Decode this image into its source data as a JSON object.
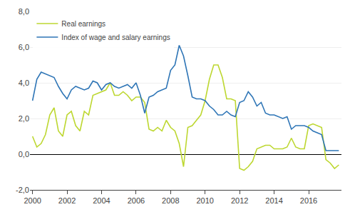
{
  "chart_data": {
    "type": "line",
    "x": [
      2000.0,
      2000.25,
      2000.5,
      2000.75,
      2001.0,
      2001.25,
      2001.5,
      2001.75,
      2002.0,
      2002.25,
      2002.5,
      2002.75,
      2003.0,
      2003.25,
      2003.5,
      2003.75,
      2004.0,
      2004.25,
      2004.5,
      2004.75,
      2005.0,
      2005.25,
      2005.5,
      2005.75,
      2006.0,
      2006.25,
      2006.5,
      2006.75,
      2007.0,
      2007.25,
      2007.5,
      2007.75,
      2008.0,
      2008.25,
      2008.5,
      2008.75,
      2009.0,
      2009.25,
      2009.5,
      2009.75,
      2010.0,
      2010.25,
      2010.5,
      2010.75,
      2011.0,
      2011.25,
      2011.5,
      2011.75,
      2012.0,
      2012.25,
      2012.5,
      2012.75,
      2013.0,
      2013.25,
      2013.5,
      2013.75,
      2014.0,
      2014.25,
      2014.5,
      2014.75,
      2015.0,
      2015.25,
      2015.5,
      2015.75,
      2016.0,
      2016.25,
      2016.5,
      2016.75,
      2017.0,
      2017.25,
      2017.5,
      2017.75
    ],
    "series": [
      {
        "name": "Real earnings",
        "color": "#bdd730",
        "values": [
          1.0,
          0.4,
          0.6,
          1.1,
          2.2,
          2.6,
          1.3,
          1.0,
          2.2,
          2.4,
          1.6,
          1.3,
          2.4,
          2.2,
          3.3,
          3.4,
          3.5,
          3.6,
          4.0,
          3.3,
          3.3,
          3.5,
          3.3,
          3.0,
          3.2,
          3.2,
          2.9,
          1.4,
          1.3,
          1.5,
          1.3,
          1.9,
          1.5,
          1.3,
          0.6,
          -0.7,
          1.5,
          1.6,
          1.9,
          2.2,
          3.0,
          4.2,
          5.0,
          5.0,
          4.3,
          3.1,
          3.1,
          3.0,
          -0.8,
          -0.9,
          -0.7,
          -0.4,
          0.3,
          0.4,
          0.5,
          0.5,
          0.3,
          0.3,
          0.3,
          0.4,
          0.9,
          0.4,
          0.3,
          0.3,
          1.6,
          1.7,
          1.6,
          1.5,
          -0.3,
          -0.5,
          -0.8,
          -0.6
        ]
      },
      {
        "name": "Index of wage and salary earnings",
        "color": "#2e75b6",
        "values": [
          3.0,
          4.2,
          4.6,
          4.5,
          4.4,
          4.3,
          3.8,
          3.4,
          3.1,
          3.6,
          3.8,
          3.7,
          3.6,
          3.7,
          4.1,
          4.0,
          3.6,
          3.9,
          4.0,
          3.8,
          3.7,
          3.8,
          3.9,
          3.7,
          4.0,
          3.3,
          2.3,
          3.2,
          3.3,
          3.5,
          3.6,
          3.7,
          4.7,
          5.0,
          6.1,
          5.5,
          4.4,
          3.2,
          3.1,
          3.1,
          3.0,
          2.7,
          2.5,
          2.2,
          2.2,
          2.4,
          2.2,
          2.1,
          2.9,
          3.0,
          3.5,
          3.2,
          2.7,
          2.9,
          2.3,
          2.2,
          2.2,
          2.1,
          2.0,
          2.1,
          1.4,
          1.6,
          1.6,
          1.6,
          1.5,
          1.3,
          1.2,
          1.1,
          0.2,
          0.2,
          0.2,
          0.2
        ]
      }
    ],
    "xlim": [
      1999.85,
      2017.9
    ],
    "xticks": [
      2000,
      2002,
      2004,
      2006,
      2008,
      2010,
      2012,
      2014,
      2016
    ],
    "ylim": [
      -2.0,
      8.0
    ],
    "yticks": [
      {
        "value": -2.0,
        "label": "-2,0"
      },
      {
        "value": 0.0,
        "label": "0,0"
      },
      {
        "value": 2.0,
        "label": "2,0"
      },
      {
        "value": 4.0,
        "label": "4,0"
      },
      {
        "value": 6.0,
        "label": "6,0"
      },
      {
        "value": 8.0,
        "label": "8,0"
      }
    ],
    "grid": true,
    "legend": "upper left"
  }
}
